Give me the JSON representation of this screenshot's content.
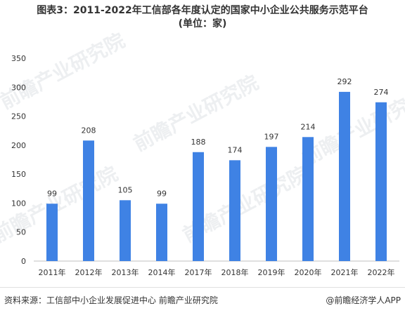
{
  "title": "图表3：2011-2022年工信部各年度认定的国家中小企业公共服务示范平台",
  "subtitle": "(单位：家)",
  "watermark_text": "前瞻产业研究院",
  "footer": {
    "source": "资料来源：工信部中小企业发展促进中心 前瞻产业研究院",
    "brand": "@前瞻经济学人APP"
  },
  "chart_data": {
    "type": "bar",
    "categories": [
      "2011年",
      "2012年",
      "2013年",
      "2014年",
      "2017年",
      "2018年",
      "2019年",
      "2020年",
      "2021年",
      "2022年"
    ],
    "values": [
      99,
      208,
      105,
      99,
      188,
      174,
      197,
      214,
      292,
      274
    ],
    "ylim": [
      0,
      350
    ],
    "yticks": [
      0,
      50,
      100,
      150,
      200,
      250,
      300,
      350
    ],
    "grid": false,
    "legend": "none",
    "bar_color": "#3f82e4"
  }
}
